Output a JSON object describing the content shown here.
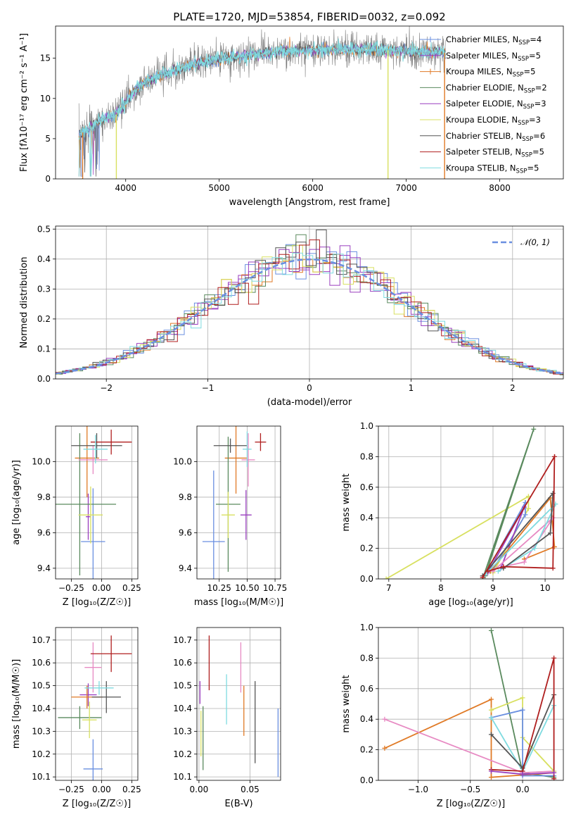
{
  "figure": {
    "title": "PLATE=1720, MJD=53854, FIBERID=0032, z=0.092"
  },
  "models": [
    {
      "name": "Chabrier MILES",
      "n": "4",
      "color": "#6a8fe0"
    },
    {
      "name": "Salpeter MILES",
      "n": "5",
      "color": "#9a3fbf"
    },
    {
      "name": "Kroupa MILES",
      "n": "5",
      "color": "#e07a26"
    },
    {
      "name": "Chabrier ELODIE",
      "n": "2",
      "color": "#5a8a5e"
    },
    {
      "name": "Salpeter ELODIE",
      "n": "3",
      "color": "#9a3fbf"
    },
    {
      "name": "Kroupa ELODIE",
      "n": "3",
      "color": "#d8e060"
    },
    {
      "name": "Chabrier STELIB",
      "n": "6",
      "color": "#555555"
    },
    {
      "name": "Salpeter STELIB",
      "n": "5",
      "color": "#b01f1f"
    },
    {
      "name": "Kroupa STELIB",
      "n": "5",
      "color": "#7fdbe0"
    }
  ],
  "chart_data": [
    {
      "id": "spectrum",
      "type": "line",
      "xlabel": "wavelength [Angstrom, rest frame]",
      "ylabel": "Flux [fλ10⁻¹⁷ erg cm⁻² s⁻¹ A⁻¹]",
      "xlim": [
        3250,
        8680
      ],
      "ylim": [
        0,
        19
      ],
      "xticks": [
        "4000",
        "5000",
        "6000",
        "7000",
        "8000"
      ],
      "yticks": [
        "0",
        "5",
        "10",
        "15"
      ],
      "legend": "top-right",
      "continuum": {
        "x": [
          3500,
          3600,
          3700,
          3800,
          3900,
          4000,
          4100,
          4200,
          4400,
          4600,
          4800,
          5000,
          5200,
          5400,
          5600,
          5800,
          6000,
          6200,
          6400,
          6600,
          6800,
          7000,
          7200,
          7400
        ],
        "y": [
          5.5,
          6.2,
          7.0,
          7.6,
          8.0,
          9.5,
          11.0,
          12.0,
          13.0,
          13.7,
          14.4,
          14.9,
          15.2,
          15.5,
          15.7,
          15.9,
          16.0,
          16.1,
          16.1,
          16.1,
          16.0,
          15.9,
          15.8,
          15.7
        ]
      }
    },
    {
      "id": "residuals",
      "type": "step",
      "xlabel": "(data-model)/error",
      "ylabel": "Normed distribution",
      "xlim": [
        -2.5,
        2.5
      ],
      "ylim": [
        0,
        0.51
      ],
      "xticks": [
        "−2",
        "−1",
        "0",
        "1",
        "2"
      ],
      "yticks": [
        "0.0",
        "0.1",
        "0.2",
        "0.3",
        "0.4",
        "0.5"
      ],
      "legend": "top-right",
      "gaussian_label": "𝒩(0, 1)",
      "gaussian_color": "#6a8fe0"
    },
    {
      "id": "age_vs_Z",
      "type": "errorbar",
      "xlabel": "Z [log₁₀(Z/Z☉)]",
      "ylabel": "age  [log₁₀(age/yr)]",
      "xlim": [
        -0.38,
        0.3
      ],
      "ylim": [
        9.34,
        10.2
      ],
      "xticks": [
        "−0.25",
        "0.00",
        "0.25"
      ],
      "yticks": [
        "9.4",
        "9.6",
        "9.8",
        "10.0"
      ],
      "points": [
        {
          "c": "#6a8fe0",
          "x": -0.07,
          "y": 9.55,
          "xe": 0.1,
          "ye": 0.3
        },
        {
          "c": "#9a3fbf",
          "x": -0.11,
          "y": 9.69,
          "xe": 0.02,
          "ye": 0.13
        },
        {
          "c": "#e07a26",
          "x": -0.12,
          "y": 10.02,
          "xe": 0.1,
          "ye": 0.22
        },
        {
          "c": "#5a8a5e",
          "x": -0.18,
          "y": 9.76,
          "xe": 0.3,
          "ye": 0.4
        },
        {
          "c": "#e78ac3",
          "x": -0.07,
          "y": 10.01,
          "xe": 0.12,
          "ye": 0.08
        },
        {
          "c": "#d8e060",
          "x": -0.09,
          "y": 9.7,
          "xe": 0.1,
          "ye": 0.16
        },
        {
          "c": "#555555",
          "x": -0.04,
          "y": 10.09,
          "xe": 0.21,
          "ye": 0.07
        },
        {
          "c": "#b01f1f",
          "x": 0.08,
          "y": 10.11,
          "xe": 0.17,
          "ye": 0.07
        },
        {
          "c": "#7fdbe0",
          "x": -0.05,
          "y": 10.07,
          "xe": 0.1,
          "ye": 0.08
        }
      ]
    },
    {
      "id": "age_vs_mass",
      "type": "errorbar",
      "xlabel": "mass [log₁₀(M/M☉)]",
      "ylabel": "",
      "xlim": [
        10.05,
        10.8
      ],
      "ylim": [
        9.34,
        10.2
      ],
      "xticks": [
        "10.25",
        "10.50",
        "10.75"
      ],
      "yticks": [
        "9.4",
        "9.6",
        "9.8",
        "10.0"
      ],
      "points": [
        {
          "c": "#6a8fe0",
          "x": 10.2,
          "y": 9.55,
          "xe": 0.1,
          "ye": 0.4
        },
        {
          "c": "#9a3fbf",
          "x": 10.49,
          "y": 9.7,
          "xe": 0.05,
          "ye": 0.14
        },
        {
          "c": "#e07a26",
          "x": 10.4,
          "y": 10.02,
          "xe": 0.1,
          "ye": 0.2
        },
        {
          "c": "#5a8a5e",
          "x": 10.33,
          "y": 9.76,
          "xe": 0.11,
          "ye": 0.38
        },
        {
          "c": "#e78ac3",
          "x": 10.51,
          "y": 10.01,
          "xe": 0.06,
          "ye": 0.15
        },
        {
          "c": "#d8e060",
          "x": 10.33,
          "y": 9.7,
          "xe": 0.06,
          "ye": 0.13
        },
        {
          "c": "#555555",
          "x": 10.35,
          "y": 10.09,
          "xe": 0.15,
          "ye": 0.04
        },
        {
          "c": "#b01f1f",
          "x": 10.62,
          "y": 10.11,
          "xe": 0.05,
          "ye": 0.05
        },
        {
          "c": "#7fdbe0",
          "x": 10.5,
          "y": 10.07,
          "xe": 0.04,
          "ye": 0.1
        }
      ]
    },
    {
      "id": "weight_vs_age",
      "type": "line",
      "xlabel": "age  [log₁₀(age/yr)]",
      "ylabel": "mass weight",
      "xlim": [
        6.8,
        10.35
      ],
      "ylim": [
        0,
        1.0
      ],
      "xticks": [
        "7",
        "8",
        "9",
        "10"
      ],
      "yticks": [
        "0.0",
        "0.2",
        "0.4",
        "0.6",
        "0.8",
        "1.0"
      ],
      "series": [
        {
          "c": "#d8e060",
          "pts": [
            [
              6.95,
              0.0
            ],
            [
              9.68,
              0.54
            ],
            [
              9.68,
              0.46
            ],
            [
              9.0,
              0.04
            ]
          ]
        },
        {
          "c": "#5a8a5e",
          "pts": [
            [
              8.85,
              0.02
            ],
            [
              9.78,
              0.98
            ],
            [
              8.8,
              0.0
            ]
          ]
        },
        {
          "c": "#6a8fe0",
          "pts": [
            [
              8.85,
              0.03
            ],
            [
              9.62,
              0.5
            ],
            [
              9.62,
              0.42
            ],
            [
              9.0,
              0.06
            ]
          ]
        },
        {
          "c": "#9a3fbf",
          "pts": [
            [
              8.9,
              0.04
            ],
            [
              9.6,
              0.47
            ],
            [
              9.15,
              0.07
            ]
          ]
        },
        {
          "c": "#e07a26",
          "pts": [
            [
              8.95,
              0.05
            ],
            [
              10.1,
              0.53
            ],
            [
              10.18,
              0.21
            ],
            [
              9.6,
              0.13
            ]
          ]
        },
        {
          "c": "#e78ac3",
          "pts": [
            [
              9.0,
              0.05
            ],
            [
              10.15,
              0.4
            ],
            [
              9.6,
              0.11
            ],
            [
              9.2,
              0.08
            ]
          ]
        },
        {
          "c": "#7fdbe0",
          "pts": [
            [
              8.85,
              0.03
            ],
            [
              10.2,
              0.49
            ],
            [
              9.8,
              0.2
            ],
            [
              9.1,
              0.05
            ]
          ]
        },
        {
          "c": "#555555",
          "pts": [
            [
              8.8,
              0.02
            ],
            [
              10.15,
              0.56
            ],
            [
              10.1,
              0.3
            ],
            [
              9.2,
              0.07
            ]
          ]
        },
        {
          "c": "#b01f1f",
          "pts": [
            [
              8.8,
              0.01
            ],
            [
              10.18,
              0.8
            ],
            [
              10.15,
              0.07
            ],
            [
              9.2,
              0.08
            ],
            [
              8.9,
              0.05
            ]
          ]
        }
      ]
    },
    {
      "id": "mass_vs_Z",
      "type": "errorbar",
      "xlabel": "Z [log₁₀(Z/Z☉)]",
      "ylabel": "mass [log₁₀(M/M☉)]",
      "xlim": [
        -0.38,
        0.3
      ],
      "ylim": [
        10.085,
        10.755
      ],
      "xticks": [
        "−0.25",
        "0.00",
        "0.25"
      ],
      "yticks": [
        "10.1",
        "10.2",
        "10.3",
        "10.4",
        "10.5",
        "10.6",
        "10.7"
      ],
      "points": [
        {
          "c": "#6a8fe0",
          "x": -0.07,
          "y": 10.135,
          "xe": 0.08,
          "ye": 0.13
        },
        {
          "c": "#9a3fbf",
          "x": -0.11,
          "y": 10.46,
          "xe": 0.07,
          "ye": 0.05
        },
        {
          "c": "#e07a26",
          "x": -0.12,
          "y": 10.45,
          "xe": 0.13,
          "ye": 0.05
        },
        {
          "c": "#5a8a5e",
          "x": -0.18,
          "y": 10.36,
          "xe": 0.18,
          "ye": 0.05
        },
        {
          "c": "#e78ac3",
          "x": -0.07,
          "y": 10.58,
          "xe": 0.07,
          "ye": 0.11
        },
        {
          "c": "#d8e060",
          "x": -0.1,
          "y": 10.35,
          "xe": 0.06,
          "ye": 0.08
        },
        {
          "c": "#555555",
          "x": 0.04,
          "y": 10.45,
          "xe": 0.12,
          "ye": 0.07
        },
        {
          "c": "#b01f1f",
          "x": 0.08,
          "y": 10.64,
          "xe": 0.17,
          "ye": 0.08
        },
        {
          "c": "#7fdbe0",
          "x": -0.02,
          "y": 10.49,
          "xe": 0.12,
          "ye": 0.03
        }
      ]
    },
    {
      "id": "mass_vs_ebv",
      "type": "errorbar",
      "xlabel": "E(B-V)",
      "ylabel": "",
      "xlim": [
        -0.002,
        0.08
      ],
      "ylim": [
        10.085,
        10.755
      ],
      "xticks": [
        "0.00",
        "0.05"
      ],
      "yticks": [
        "10.1",
        "10.2",
        "10.3",
        "10.4",
        "10.5",
        "10.6",
        "10.7"
      ],
      "points": [
        {
          "c": "#6a8fe0",
          "x": 0.0775,
          "y": 10.25,
          "xe": 0.0,
          "ye": 0.15
        },
        {
          "c": "#9a3fbf",
          "x": 0.001,
          "y": 10.47,
          "xe": 0.0,
          "ye": 0.05
        },
        {
          "c": "#e07a26",
          "x": 0.044,
          "y": 10.39,
          "xe": 0.0,
          "ye": 0.11
        },
        {
          "c": "#5a8a5e",
          "x": 0.004,
          "y": 10.27,
          "xe": 0.0,
          "ye": 0.14
        },
        {
          "c": "#e78ac3",
          "x": 0.041,
          "y": 10.58,
          "xe": 0.0,
          "ye": 0.11
        },
        {
          "c": "#d8e060",
          "x": 0.002,
          "y": 10.29,
          "xe": 0.0,
          "ye": 0.1
        },
        {
          "c": "#555555",
          "x": 0.055,
          "y": 10.34,
          "xe": 0.0,
          "ye": 0.18
        },
        {
          "c": "#b01f1f",
          "x": 0.01,
          "y": 10.6,
          "xe": 0.0,
          "ye": 0.12
        },
        {
          "c": "#7fdbe0",
          "x": 0.027,
          "y": 10.44,
          "xe": 0.0,
          "ye": 0.11
        }
      ]
    },
    {
      "id": "weight_vs_Z",
      "type": "line",
      "xlabel": "Z [log₁₀(Z/Z☉)]",
      "ylabel": "mass weight",
      "xlim": [
        -1.38,
        0.39
      ],
      "ylim": [
        0,
        1.0
      ],
      "xticks": [
        "−1.0",
        "−0.5",
        "0.0"
      ],
      "yticks": [
        "0.0",
        "0.2",
        "0.4",
        "0.6",
        "0.8",
        "1.0"
      ],
      "series": [
        {
          "c": "#5a8a5e",
          "pts": [
            [
              -0.3,
              0.98
            ],
            [
              0.0,
              0.05
            ],
            [
              0.3,
              0.02
            ]
          ]
        },
        {
          "c": "#e07a26",
          "pts": [
            [
              -1.32,
              0.21
            ],
            [
              -0.3,
              0.53
            ],
            [
              -0.3,
              0.02
            ],
            [
              0.3,
              0.05
            ]
          ]
        },
        {
          "c": "#e78ac3",
          "pts": [
            [
              -1.32,
              0.4
            ],
            [
              0.0,
              0.05
            ],
            [
              0.3,
              0.06
            ]
          ]
        },
        {
          "c": "#d8e060",
          "pts": [
            [
              -0.3,
              0.46
            ],
            [
              0.0,
              0.54
            ],
            [
              0.0,
              0.28
            ],
            [
              0.3,
              0.06
            ]
          ]
        },
        {
          "c": "#6a8fe0",
          "pts": [
            [
              -0.3,
              0.41
            ],
            [
              0.0,
              0.46
            ],
            [
              0.0,
              0.03
            ],
            [
              0.3,
              0.03
            ]
          ]
        },
        {
          "c": "#7fdbe0",
          "pts": [
            [
              -0.3,
              0.41
            ],
            [
              0.0,
              0.06
            ],
            [
              0.3,
              0.49
            ]
          ]
        },
        {
          "c": "#555555",
          "pts": [
            [
              -0.3,
              0.3
            ],
            [
              0.0,
              0.08
            ],
            [
              0.3,
              0.56
            ]
          ]
        },
        {
          "c": "#b01f1f",
          "pts": [
            [
              -0.3,
              0.07
            ],
            [
              0.0,
              0.06
            ],
            [
              0.3,
              0.8
            ],
            [
              0.3,
              0.01
            ]
          ]
        },
        {
          "c": "#9a3fbf",
          "pts": [
            [
              -0.3,
              0.06
            ],
            [
              0.0,
              0.04
            ],
            [
              0.3,
              0.05
            ]
          ]
        }
      ]
    }
  ]
}
